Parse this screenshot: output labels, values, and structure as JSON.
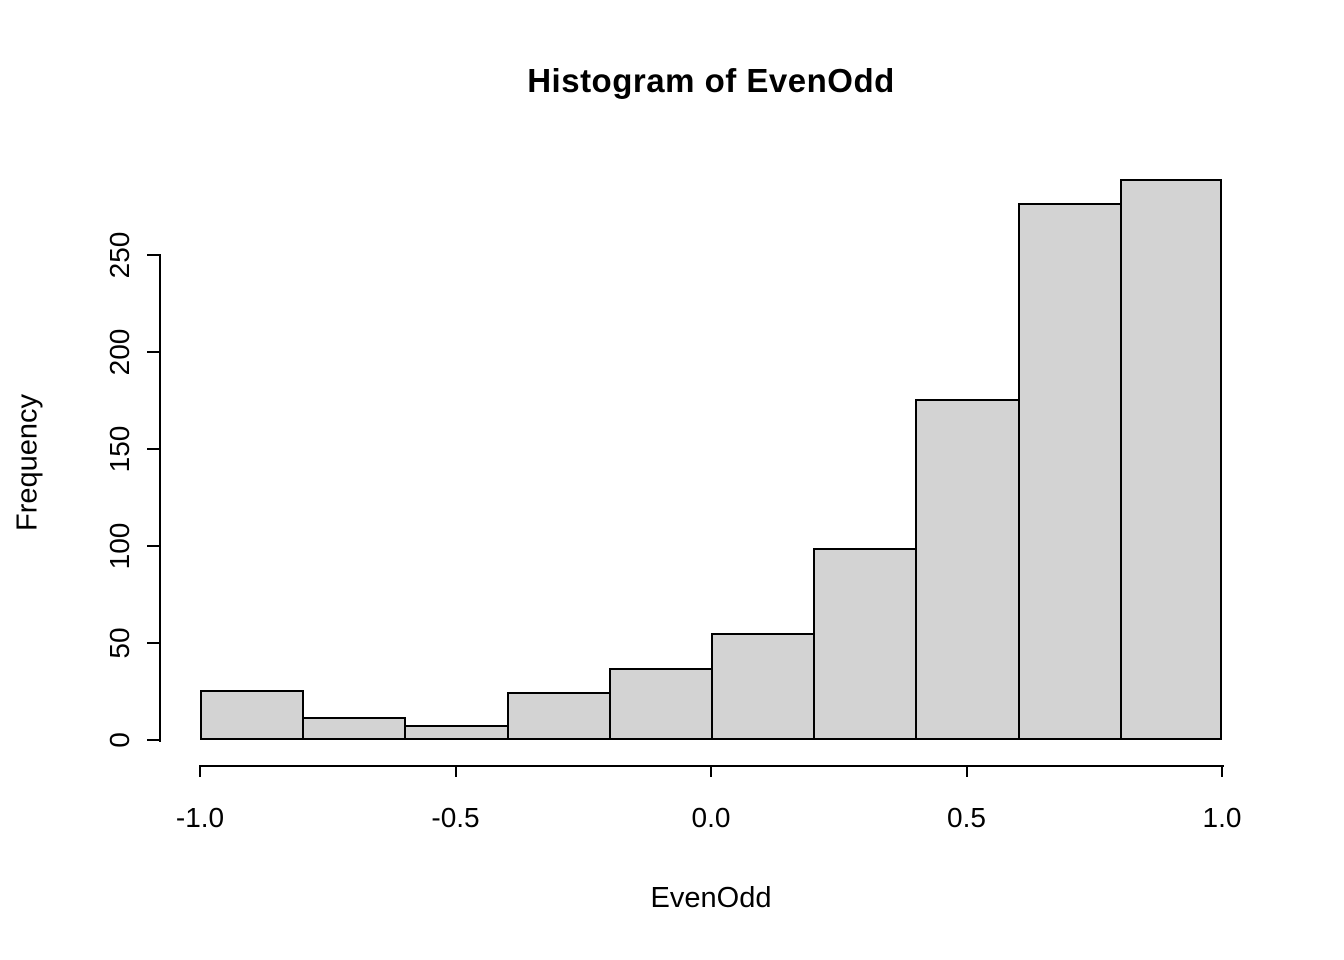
{
  "chart_data": {
    "type": "bar",
    "subtype": "histogram",
    "title": "Histogram of EvenOdd",
    "xlabel": "EvenOdd",
    "ylabel": "Frequency",
    "bins": [
      -1.0,
      -0.8,
      -0.6,
      -0.4,
      -0.2,
      0.0,
      0.2,
      0.4,
      0.6,
      0.8,
      1.0
    ],
    "counts": [
      26,
      12,
      8,
      25,
      37,
      55,
      99,
      176,
      277,
      289
    ],
    "x_tick_labels": [
      "-1.0",
      "-0.5",
      "0.0",
      "0.5",
      "1.0"
    ],
    "x_tick_values": [
      -1.0,
      -0.5,
      0.0,
      0.5,
      1.0
    ],
    "y_tick_labels": [
      "0",
      "50",
      "100",
      "150",
      "200",
      "250"
    ],
    "y_tick_values": [
      0,
      50,
      100,
      150,
      200,
      250
    ],
    "xlim": [
      -1.0,
      1.0
    ],
    "ylim": [
      0,
      250
    ],
    "bar_fill": "#d3d3d3",
    "bar_border": "#000000",
    "background": "#ffffff",
    "grid": "off",
    "legend": "none"
  }
}
